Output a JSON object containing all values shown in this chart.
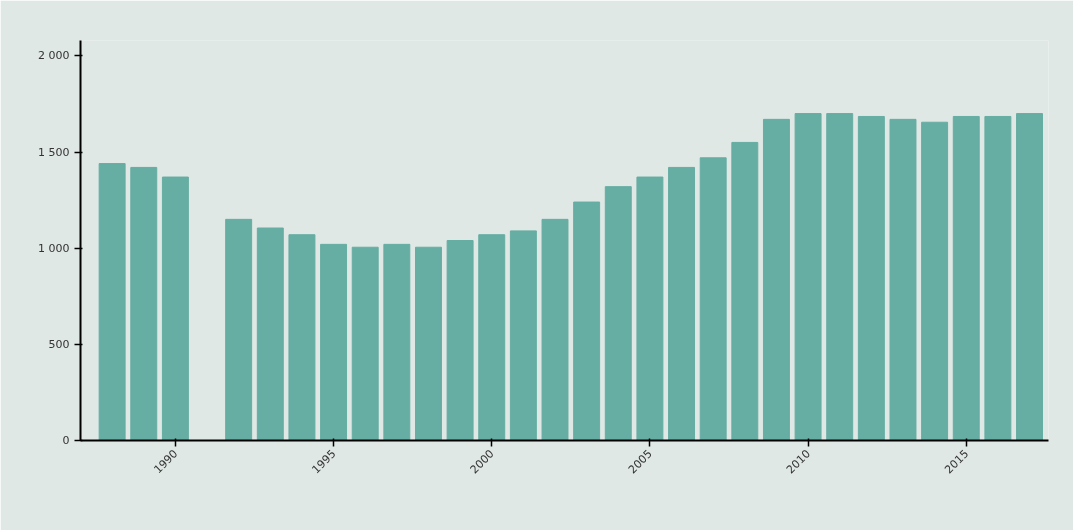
{
  "chart_data": {
    "type": "bar",
    "x": [
      1988,
      1989,
      1990,
      1991,
      1992,
      1993,
      1994,
      1995,
      1996,
      1997,
      1998,
      1999,
      2000,
      2001,
      2002,
      2003,
      2004,
      2005,
      2006,
      2007,
      2008,
      2009,
      2010,
      2011,
      2012,
      2013,
      2014,
      2015,
      2016,
      2017
    ],
    "values": [
      1440,
      1420,
      1370,
      null,
      1150,
      1105,
      1070,
      1020,
      1005,
      1020,
      1005,
      1040,
      1070,
      1090,
      1150,
      1240,
      1320,
      1370,
      1420,
      1470,
      1550,
      1670,
      1700,
      1700,
      1685,
      1670,
      1655,
      1685,
      1685,
      1700
    ],
    "color": "#66ada3",
    "xlim": [
      1987,
      2017.6
    ],
    "xticks": [
      1990,
      1995,
      2000,
      2005,
      2010,
      2015
    ],
    "ylim": [
      0,
      2080
    ],
    "yticks": [
      0,
      500,
      {
        "value": 1000,
        "label": "1 000"
      },
      {
        "value": 1500,
        "label": "1 500"
      },
      {
        "value": 2000,
        "label": "2 000"
      }
    ],
    "grid": false
  }
}
